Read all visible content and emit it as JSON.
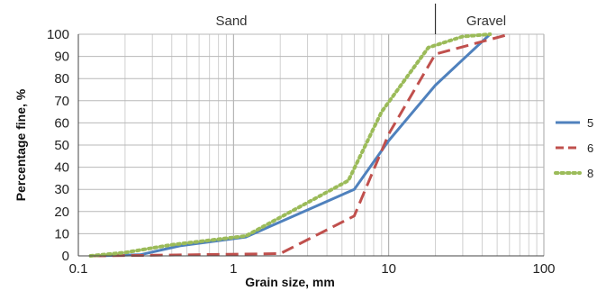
{
  "chart_data": {
    "type": "line",
    "xlabel": "Grain size, mm",
    "ylabel": "Percentage fine, %",
    "xscale": "log",
    "xlim": [
      0.1,
      100
    ],
    "ylim": [
      0,
      100
    ],
    "x_ticks": [
      "0.1",
      "1",
      "10",
      "100"
    ],
    "y_ticks": [
      "0",
      "10",
      "20",
      "30",
      "40",
      "50",
      "60",
      "70",
      "80",
      "90",
      "100"
    ],
    "grid": true,
    "legend": "right",
    "regions": [
      {
        "label": "Sand",
        "x_range": [
          0.1,
          20
        ]
      },
      {
        "label": "Gravel",
        "x_range": [
          20,
          100
        ]
      }
    ],
    "region_boundary_x": 20,
    "series": [
      {
        "name": "5",
        "color": "#4f81bd",
        "dash": "solid",
        "points": [
          [
            0.125,
            0
          ],
          [
            0.25,
            0.5
          ],
          [
            0.45,
            4.5
          ],
          [
            1.2,
            8.5
          ],
          [
            6,
            30
          ],
          [
            10,
            52
          ],
          [
            20,
            77
          ],
          [
            45,
            100
          ]
        ]
      },
      {
        "name": "6",
        "color": "#c0504d",
        "dash": "dashed",
        "points": [
          [
            0.125,
            0
          ],
          [
            0.25,
            0.2
          ],
          [
            2,
            1
          ],
          [
            6,
            18
          ],
          [
            10,
            55
          ],
          [
            20,
            91
          ],
          [
            60,
            100
          ]
        ]
      },
      {
        "name": "8",
        "color": "#9bbb59",
        "dash": "dotted",
        "points": [
          [
            0.12,
            0
          ],
          [
            0.2,
            1.5
          ],
          [
            0.4,
            5
          ],
          [
            1.2,
            9
          ],
          [
            5.5,
            34
          ],
          [
            9,
            65
          ],
          [
            18,
            94
          ],
          [
            30,
            99
          ],
          [
            45,
            100
          ]
        ]
      }
    ]
  }
}
